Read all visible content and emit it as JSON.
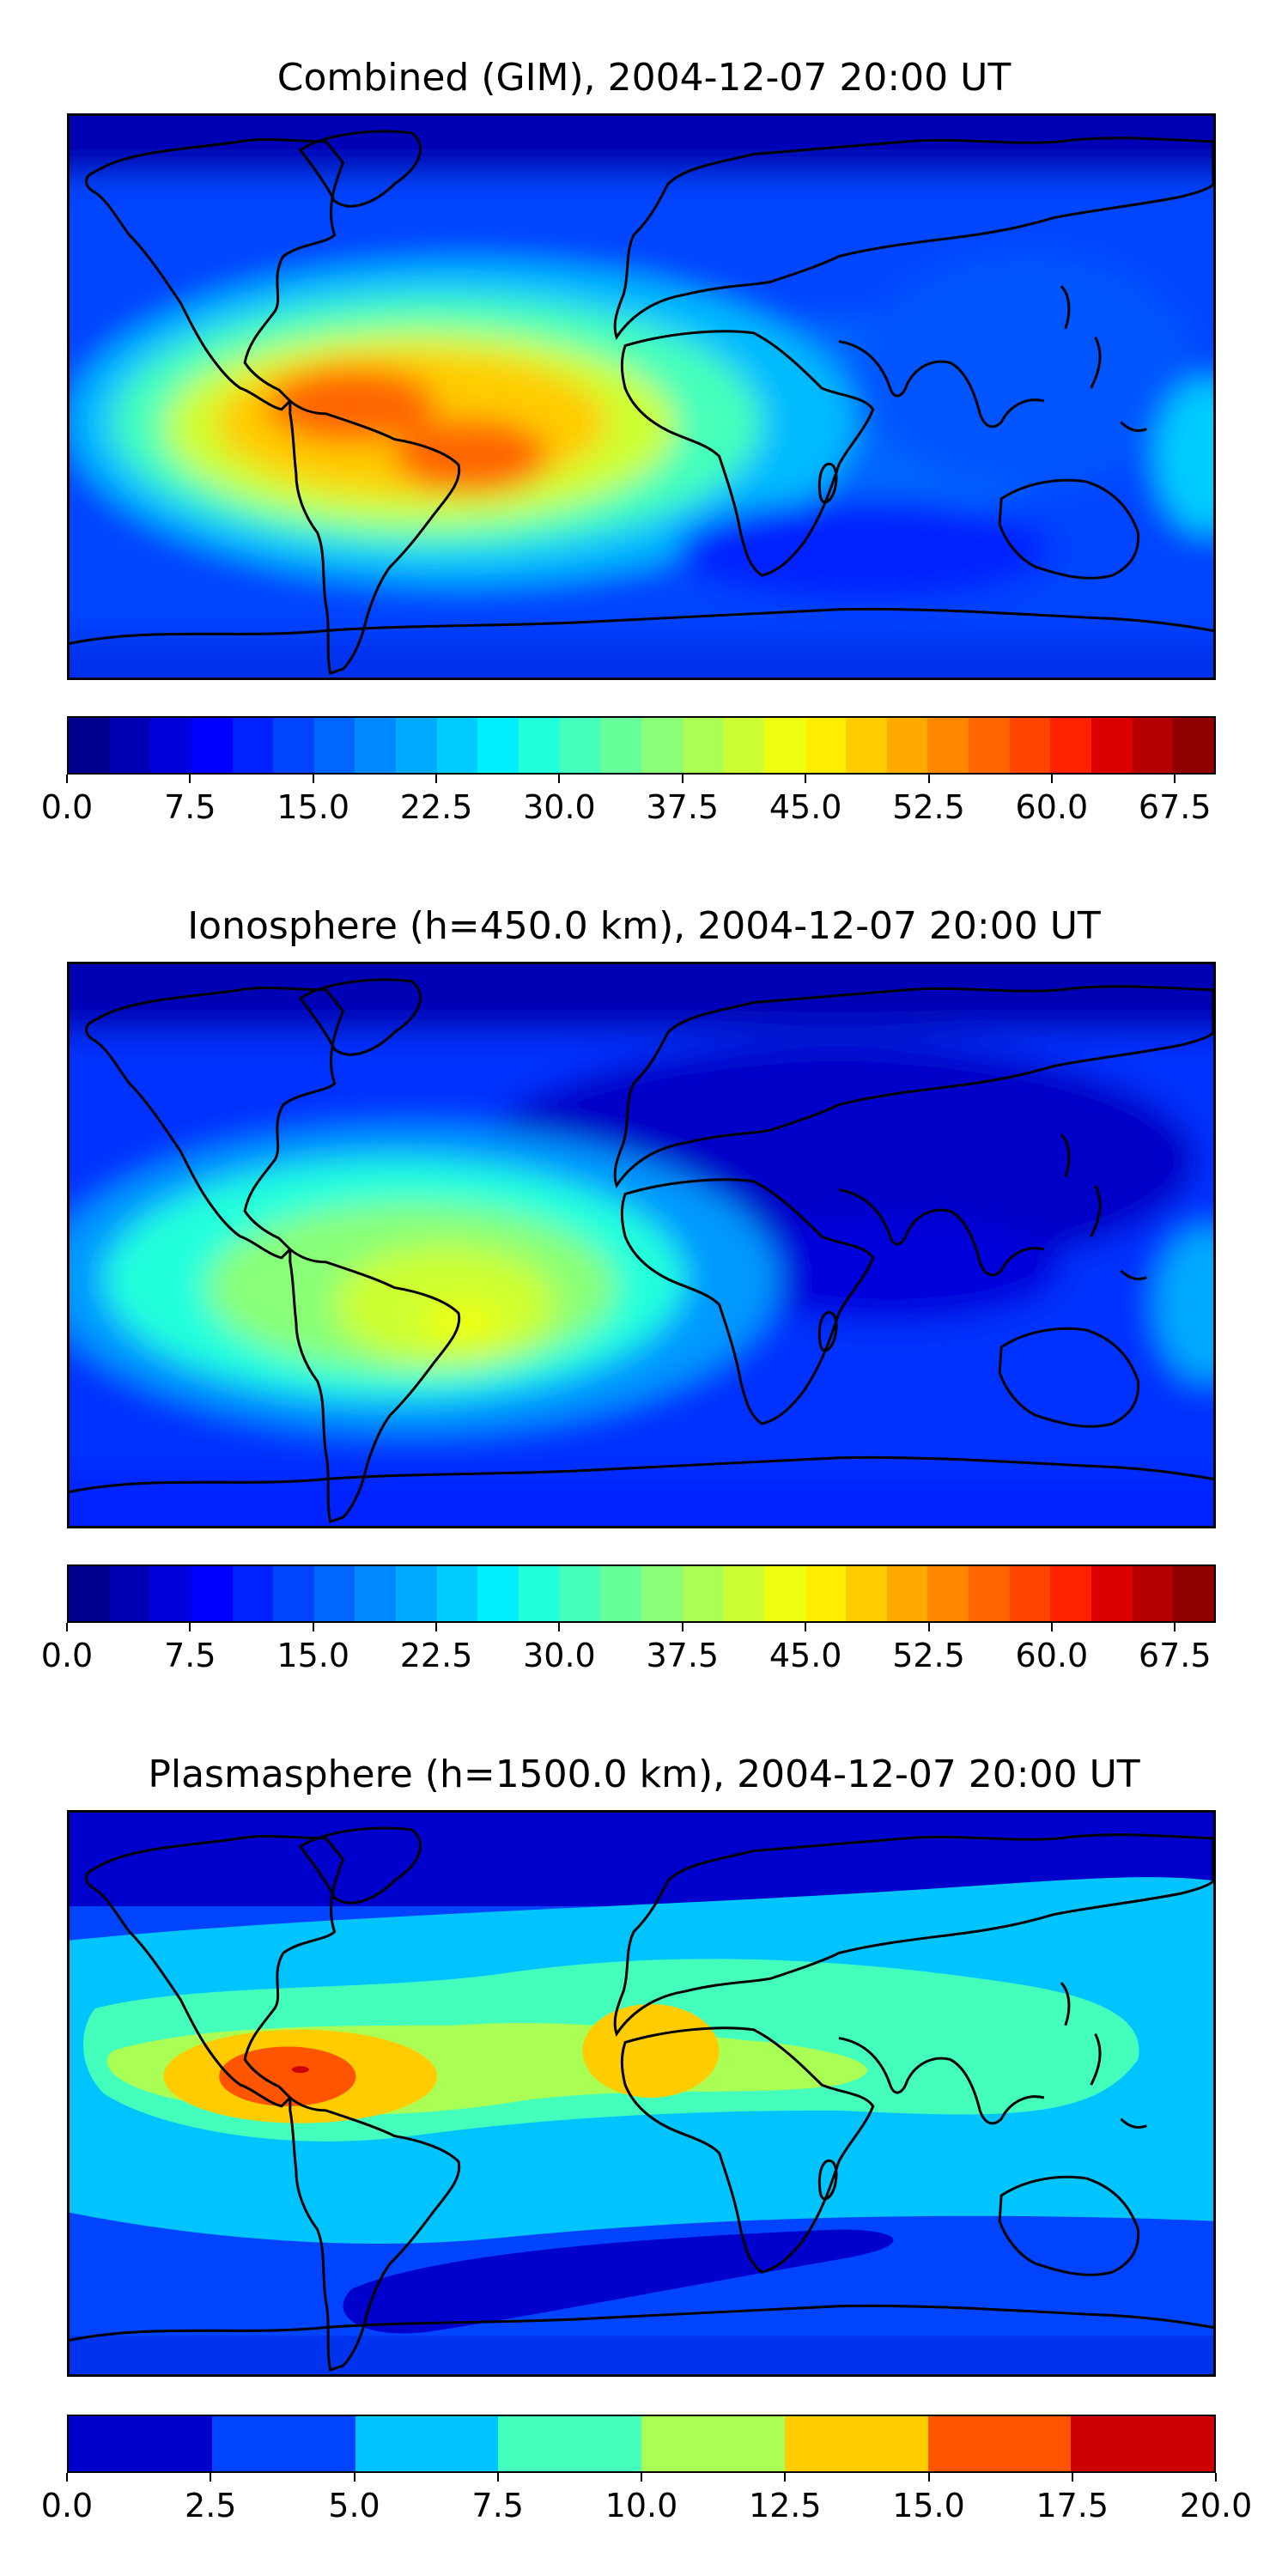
{
  "panels": [
    {
      "title": "Combined (GIM), 2004-12-07 20:00 UT",
      "colors": [
        "#00008f",
        "#0000b5",
        "#0000dc",
        "#0000ff",
        "#0022ff",
        "#0044ff",
        "#0066ff",
        "#0088ff",
        "#00aaff",
        "#00ccff",
        "#00eeff",
        "#22ffdd",
        "#44ffbb",
        "#66ff99",
        "#88ff77",
        "#aaff55",
        "#ccff33",
        "#eeff11",
        "#ffee00",
        "#ffcc00",
        "#ffaa00",
        "#ff8800",
        "#ff6600",
        "#ff4400",
        "#ff2200",
        "#dd0000",
        "#b50000",
        "#8f0000"
      ],
      "tick_labels": [
        "0.0",
        "7.5",
        "15.0",
        "22.5",
        "30.0",
        "37.5",
        "45.0",
        "52.5",
        "60.0",
        "67.5"
      ],
      "tick_values": [
        0,
        7.5,
        15,
        22.5,
        30,
        37.5,
        45,
        52.5,
        60,
        67.5
      ],
      "vmin": 0,
      "vmax": 70
    },
    {
      "title": "Ionosphere  (h=450.0 km), 2004-12-07 20:00 UT",
      "colors": [
        "#00008f",
        "#0000b5",
        "#0000dc",
        "#0000ff",
        "#0022ff",
        "#0044ff",
        "#0066ff",
        "#0088ff",
        "#00aaff",
        "#00ccff",
        "#00eeff",
        "#22ffdd",
        "#44ffbb",
        "#66ff99",
        "#88ff77",
        "#aaff55",
        "#ccff33",
        "#eeff11",
        "#ffee00",
        "#ffcc00",
        "#ffaa00",
        "#ff8800",
        "#ff6600",
        "#ff4400",
        "#ff2200",
        "#dd0000",
        "#b50000",
        "#8f0000"
      ],
      "tick_labels": [
        "0.0",
        "7.5",
        "15.0",
        "22.5",
        "30.0",
        "37.5",
        "45.0",
        "52.5",
        "60.0",
        "67.5"
      ],
      "tick_values": [
        0,
        7.5,
        15,
        22.5,
        30,
        37.5,
        45,
        52.5,
        60,
        67.5
      ],
      "vmin": 0,
      "vmax": 70
    },
    {
      "title": "Plasmasphere (h=1500.0 km), 2004-12-07 20:00 UT",
      "colors": [
        "#0000cc",
        "#0044ff",
        "#00c4ff",
        "#44ffbb",
        "#aaff55",
        "#ffcc00",
        "#ff5500",
        "#cc0000"
      ],
      "tick_labels": [
        "0.0",
        "2.5",
        "5.0",
        "7.5",
        "10.0",
        "12.5",
        "15.0",
        "17.5",
        "20.0"
      ],
      "tick_values": [
        0,
        2.5,
        5,
        7.5,
        10,
        12.5,
        15,
        17.5,
        20
      ],
      "vmin": 0,
      "vmax": 20
    }
  ],
  "chart_data": [
    {
      "type": "heatmap",
      "title": "Combined (GIM), 2004-12-07 20:00 UT",
      "colorbar_range": [
        0,
        70
      ],
      "colorbar_ticks": [
        0,
        7.5,
        15,
        22.5,
        30,
        37.5,
        45,
        52.5,
        60,
        67.5
      ],
      "colorbar_levels": 28,
      "features": [
        {
          "region": "South America / East Pacific peak",
          "value": 62
        },
        {
          "region": "Equatorial Atlantic / Africa",
          "value": 25
        },
        {
          "region": "Asia / Pacific",
          "value": 12
        },
        {
          "region": "Polar regions",
          "value": 6
        }
      ]
    },
    {
      "type": "heatmap",
      "title": "Ionosphere  (h=450.0 km), 2004-12-07 20:00 UT",
      "colorbar_range": [
        0,
        70
      ],
      "colorbar_ticks": [
        0,
        7.5,
        15,
        22.5,
        30,
        37.5,
        45,
        52.5,
        60,
        67.5
      ],
      "colorbar_levels": 28,
      "features": [
        {
          "region": "South America peak",
          "value": 42
        },
        {
          "region": "East Pacific",
          "value": 30
        },
        {
          "region": "Africa / Asia",
          "value": 8
        },
        {
          "region": "Polar regions",
          "value": 5
        }
      ]
    },
    {
      "type": "heatmap",
      "title": "Plasmasphere (h=1500.0 km), 2004-12-07 20:00 UT",
      "colorbar_range": [
        0,
        20
      ],
      "colorbar_ticks": [
        0,
        2.5,
        5,
        7.5,
        10,
        12.5,
        15,
        17.5,
        20
      ],
      "colorbar_levels": 8,
      "features": [
        {
          "region": "East Pacific peak",
          "value": 16
        },
        {
          "region": "Central Africa",
          "value": 13
        },
        {
          "region": "Equatorial belt",
          "value": 9
        },
        {
          "region": "Southern Ocean low",
          "value": 1.5
        },
        {
          "region": "Polar regions",
          "value": 3
        }
      ]
    }
  ]
}
